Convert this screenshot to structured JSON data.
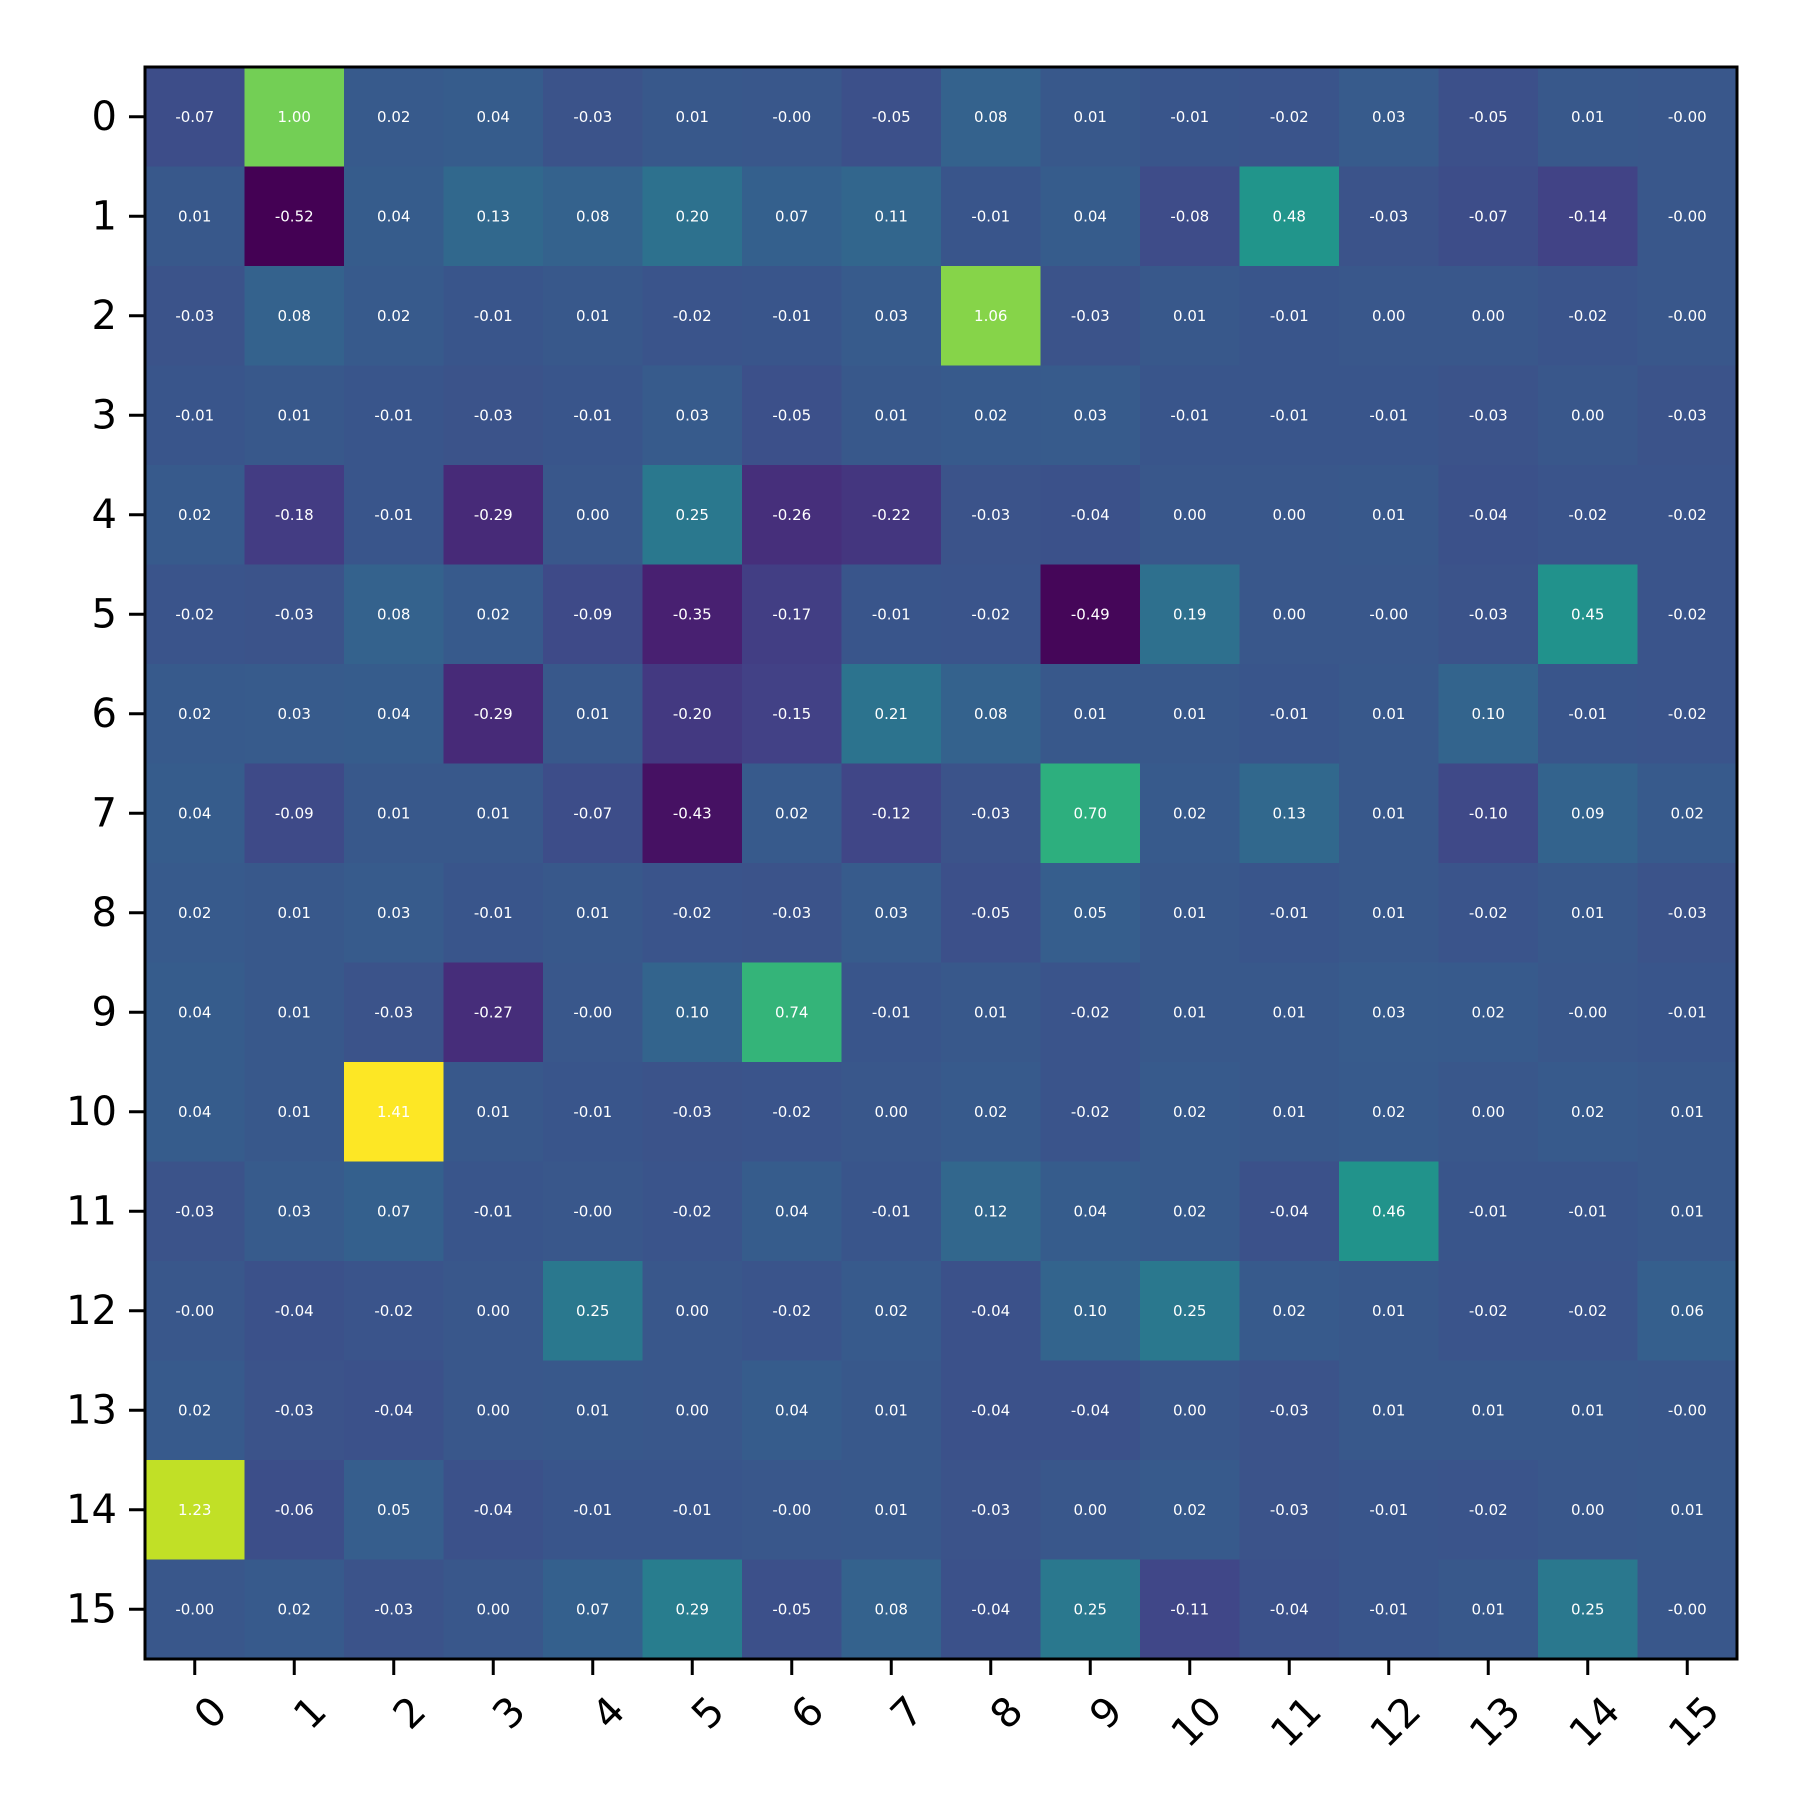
{
  "chart_data": {
    "type": "heatmap",
    "colormap": "viridis",
    "vmin": -0.52,
    "vmax": 1.41,
    "x_ticks": [
      "0",
      "1",
      "2",
      "3",
      "4",
      "5",
      "6",
      "7",
      "8",
      "9",
      "10",
      "11",
      "12",
      "13",
      "14",
      "15"
    ],
    "y_ticks": [
      "0",
      "1",
      "2",
      "3",
      "4",
      "5",
      "6",
      "7",
      "8",
      "9",
      "10",
      "11",
      "12",
      "13",
      "14",
      "15"
    ],
    "x_tick_rotation": 45,
    "values": [
      [
        -0.07,
        1.0,
        0.02,
        0.04,
        -0.03,
        0.01,
        -0.0,
        -0.05,
        0.08,
        0.01,
        -0.01,
        -0.02,
        0.03,
        -0.05,
        0.01,
        -0.0
      ],
      [
        0.01,
        -0.52,
        0.04,
        0.13,
        0.08,
        0.2,
        0.07,
        0.11,
        -0.01,
        0.04,
        -0.08,
        0.48,
        -0.03,
        -0.07,
        -0.14,
        -0.0
      ],
      [
        -0.03,
        0.08,
        0.02,
        -0.01,
        0.01,
        -0.02,
        -0.01,
        0.03,
        1.06,
        -0.03,
        0.01,
        -0.01,
        0.0,
        0.0,
        -0.02,
        -0.0
      ],
      [
        -0.01,
        0.01,
        -0.01,
        -0.03,
        -0.01,
        0.03,
        -0.05,
        0.01,
        0.02,
        0.03,
        -0.01,
        -0.01,
        -0.01,
        -0.03,
        0.0,
        -0.03
      ],
      [
        0.02,
        -0.18,
        -0.01,
        -0.29,
        0.0,
        0.25,
        -0.26,
        -0.22,
        -0.03,
        -0.04,
        0.0,
        0.0,
        0.01,
        -0.04,
        -0.02,
        -0.02
      ],
      [
        -0.02,
        -0.03,
        0.08,
        0.02,
        -0.09,
        -0.35,
        -0.17,
        -0.01,
        -0.02,
        -0.49,
        0.19,
        0.0,
        -0.0,
        -0.03,
        0.45,
        -0.02
      ],
      [
        0.02,
        0.03,
        0.04,
        -0.29,
        0.01,
        -0.2,
        -0.15,
        0.21,
        0.08,
        0.01,
        0.01,
        -0.01,
        0.01,
        0.1,
        -0.01,
        -0.02
      ],
      [
        0.04,
        -0.09,
        0.01,
        0.01,
        -0.07,
        -0.43,
        0.02,
        -0.12,
        -0.03,
        0.7,
        0.02,
        0.13,
        0.01,
        -0.1,
        0.09,
        0.02
      ],
      [
        0.02,
        0.01,
        0.03,
        -0.01,
        0.01,
        -0.02,
        -0.03,
        0.03,
        -0.05,
        0.05,
        0.01,
        -0.01,
        0.01,
        -0.02,
        0.01,
        -0.03
      ],
      [
        0.04,
        0.01,
        -0.03,
        -0.27,
        -0.0,
        0.1,
        0.74,
        -0.01,
        0.01,
        -0.02,
        0.01,
        0.01,
        0.03,
        0.02,
        -0.0,
        -0.01
      ],
      [
        0.04,
        0.01,
        1.41,
        0.01,
        -0.01,
        -0.03,
        -0.02,
        0.0,
        0.02,
        -0.02,
        0.02,
        0.01,
        0.02,
        0.0,
        0.02,
        0.01
      ],
      [
        -0.03,
        0.03,
        0.07,
        -0.01,
        -0.0,
        -0.02,
        0.04,
        -0.01,
        0.12,
        0.04,
        0.02,
        -0.04,
        0.46,
        -0.01,
        -0.01,
        0.01
      ],
      [
        -0.0,
        -0.04,
        -0.02,
        0.0,
        0.25,
        0.0,
        -0.02,
        0.02,
        -0.04,
        0.1,
        0.25,
        0.02,
        0.01,
        -0.02,
        -0.02,
        0.06
      ],
      [
        0.02,
        -0.03,
        -0.04,
        0.0,
        0.01,
        0.0,
        0.04,
        0.01,
        -0.04,
        -0.04,
        0.0,
        -0.03,
        0.01,
        0.01,
        0.01,
        -0.0
      ],
      [
        1.23,
        -0.06,
        0.05,
        -0.04,
        -0.01,
        -0.01,
        -0.0,
        0.01,
        -0.03,
        0.0,
        0.02,
        -0.03,
        -0.01,
        -0.02,
        0.0,
        0.01
      ],
      [
        -0.0,
        0.02,
        -0.03,
        0.0,
        0.07,
        0.29,
        -0.05,
        0.08,
        -0.04,
        0.25,
        -0.11,
        -0.04,
        -0.01,
        0.01,
        0.25,
        -0.0
      ]
    ],
    "value_labels": [
      [
        "-0.07",
        "1.00",
        "0.02",
        "0.04",
        "-0.03",
        "0.01",
        "-0.00",
        "-0.05",
        "0.08",
        "0.01",
        "-0.01",
        "-0.02",
        "0.03",
        "-0.05",
        "0.01",
        "-0.00"
      ],
      [
        "0.01",
        "-0.52",
        "0.04",
        "0.13",
        "0.08",
        "0.20",
        "0.07",
        "0.11",
        "-0.01",
        "0.04",
        "-0.08",
        "0.48",
        "-0.03",
        "-0.07",
        "-0.14",
        "-0.00"
      ],
      [
        "-0.03",
        "0.08",
        "0.02",
        "-0.01",
        "0.01",
        "-0.02",
        "-0.01",
        "0.03",
        "1.06",
        "-0.03",
        "0.01",
        "-0.01",
        "0.00",
        "0.00",
        "-0.02",
        "-0.00"
      ],
      [
        "-0.01",
        "0.01",
        "-0.01",
        "-0.03",
        "-0.01",
        "0.03",
        "-0.05",
        "0.01",
        "0.02",
        "0.03",
        "-0.01",
        "-0.01",
        "-0.01",
        "-0.03",
        "0.00",
        "-0.03"
      ],
      [
        "0.02",
        "-0.18",
        "-0.01",
        "-0.29",
        "0.00",
        "0.25",
        "-0.26",
        "-0.22",
        "-0.03",
        "-0.04",
        "0.00",
        "0.00",
        "0.01",
        "-0.04",
        "-0.02",
        "-0.02"
      ],
      [
        "-0.02",
        "-0.03",
        "0.08",
        "0.02",
        "-0.09",
        "-0.35",
        "-0.17",
        "-0.01",
        "-0.02",
        "-0.49",
        "0.19",
        "0.00",
        "-0.00",
        "-0.03",
        "0.45",
        "-0.02"
      ],
      [
        "0.02",
        "0.03",
        "0.04",
        "-0.29",
        "0.01",
        "-0.20",
        "-0.15",
        "0.21",
        "0.08",
        "0.01",
        "0.01",
        "-0.01",
        "0.01",
        "0.10",
        "-0.01",
        "-0.02"
      ],
      [
        "0.04",
        "-0.09",
        "0.01",
        "0.01",
        "-0.07",
        "-0.43",
        "0.02",
        "-0.12",
        "-0.03",
        "0.70",
        "0.02",
        "0.13",
        "0.01",
        "-0.10",
        "0.09",
        "0.02"
      ],
      [
        "0.02",
        "0.01",
        "0.03",
        "-0.01",
        "0.01",
        "-0.02",
        "-0.03",
        "0.03",
        "-0.05",
        "0.05",
        "0.01",
        "-0.01",
        "0.01",
        "-0.02",
        "0.01",
        "-0.03"
      ],
      [
        "0.04",
        "0.01",
        "-0.03",
        "-0.27",
        "-0.00",
        "0.10",
        "0.74",
        "-0.01",
        "0.01",
        "-0.02",
        "0.01",
        "0.01",
        "0.03",
        "0.02",
        "-0.00",
        "-0.01"
      ],
      [
        "0.04",
        "0.01",
        "1.41",
        "0.01",
        "-0.01",
        "-0.03",
        "-0.02",
        "0.00",
        "0.02",
        "-0.02",
        "0.02",
        "0.01",
        "0.02",
        "0.00",
        "0.02",
        "0.01"
      ],
      [
        "-0.03",
        "0.03",
        "0.07",
        "-0.01",
        "-0.00",
        "-0.02",
        "0.04",
        "-0.01",
        "0.12",
        "0.04",
        "0.02",
        "-0.04",
        "0.46",
        "-0.01",
        "-0.01",
        "0.01"
      ],
      [
        "-0.00",
        "-0.04",
        "-0.02",
        "0.00",
        "0.25",
        "0.00",
        "-0.02",
        "0.02",
        "-0.04",
        "0.10",
        "0.25",
        "0.02",
        "0.01",
        "-0.02",
        "-0.02",
        "0.06"
      ],
      [
        "0.02",
        "-0.03",
        "-0.04",
        "0.00",
        "0.01",
        "0.00",
        "0.04",
        "0.01",
        "-0.04",
        "-0.04",
        "0.00",
        "-0.03",
        "0.01",
        "0.01",
        "0.01",
        "-0.00"
      ],
      [
        "1.23",
        "-0.06",
        "0.05",
        "-0.04",
        "-0.01",
        "-0.01",
        "-0.00",
        "0.01",
        "-0.03",
        "0.00",
        "0.02",
        "-0.03",
        "-0.01",
        "-0.02",
        "0.00",
        "0.01"
      ],
      [
        "-0.00",
        "0.02",
        "-0.03",
        "0.00",
        "0.07",
        "0.29",
        "-0.05",
        "0.08",
        "-0.04",
        "0.25",
        "-0.11",
        "-0.04",
        "-0.01",
        "0.01",
        "0.25",
        "-0.00"
      ]
    ]
  }
}
